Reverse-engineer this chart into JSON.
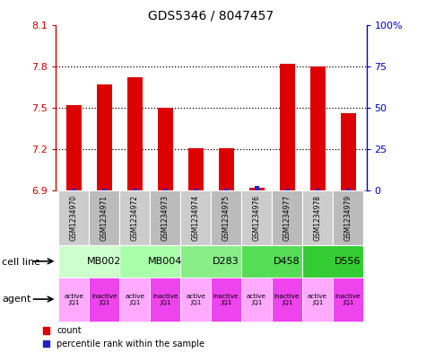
{
  "title": "GDS5346 / 8047457",
  "samples": [
    "GSM1234970",
    "GSM1234971",
    "GSM1234972",
    "GSM1234973",
    "GSM1234974",
    "GSM1234975",
    "GSM1234976",
    "GSM1234977",
    "GSM1234978",
    "GSM1234979"
  ],
  "count_values": [
    7.52,
    7.67,
    7.72,
    7.5,
    7.21,
    7.21,
    6.92,
    7.82,
    7.8,
    7.46
  ],
  "percentile_values": [
    1,
    1,
    1,
    1,
    1,
    1,
    3,
    1,
    1,
    1
  ],
  "ylim": [
    6.9,
    8.1
  ],
  "yticks": [
    6.9,
    7.2,
    7.5,
    7.8,
    8.1
  ],
  "y2ticks": [
    0,
    25,
    50,
    75,
    100
  ],
  "y2labels": [
    "0",
    "25",
    "50",
    "75",
    "100%"
  ],
  "bar_color": "#dd0000",
  "percentile_color": "#2222cc",
  "dotted_lines": [
    7.2,
    7.5,
    7.8
  ],
  "cell_lines": [
    {
      "label": "MB002",
      "span": [
        0,
        2
      ],
      "color": "#ccffcc"
    },
    {
      "label": "MB004",
      "span": [
        2,
        4
      ],
      "color": "#aaffaa"
    },
    {
      "label": "D283",
      "span": [
        4,
        6
      ],
      "color": "#88ee88"
    },
    {
      "label": "D458",
      "span": [
        6,
        8
      ],
      "color": "#55dd55"
    },
    {
      "label": "D556",
      "span": [
        8,
        10
      ],
      "color": "#33cc33"
    }
  ],
  "agents": [
    "active\nJQ1",
    "inactive\nJQ1",
    "active\nJQ1",
    "inactive\nJQ1",
    "active\nJQ1",
    "inactive\nJQ1",
    "active\nJQ1",
    "inactive\nJQ1",
    "active\nJQ1",
    "inactive\nJQ1"
  ],
  "agent_colors": [
    "#ffaaff",
    "#ee44ee",
    "#ffaaff",
    "#ee44ee",
    "#ffaaff",
    "#ee44ee",
    "#ffaaff",
    "#ee44ee",
    "#ffaaff",
    "#ee44ee"
  ],
  "sample_colors_even": "#cccccc",
  "sample_colors_odd": "#bbbbbb",
  "bar_width": 0.5,
  "perc_bar_width": 0.15
}
